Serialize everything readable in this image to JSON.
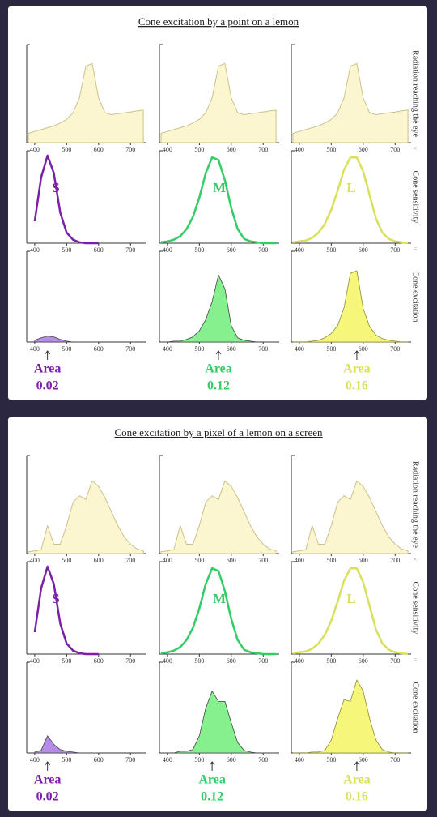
{
  "chart_data": [
    {
      "type": "area",
      "title": "Cone excitation by a point on a lemon",
      "row_labels": [
        "Radiation reaching the eye",
        "Cone sensitivity",
        "Cone excitation"
      ],
      "operators": [
        "×",
        "="
      ],
      "x": [
        380,
        400,
        420,
        440,
        460,
        480,
        500,
        520,
        540,
        560,
        580,
        600,
        620,
        640,
        660,
        680,
        700,
        720,
        740
      ],
      "xlim": [
        375,
        750
      ],
      "ylim": [
        0,
        1
      ],
      "xticks": [
        400,
        500,
        600,
        700
      ],
      "radiation": {
        "color": "#c9c28a",
        "fill": "#fbf6cf",
        "values": [
          0.1,
          0.12,
          0.14,
          0.16,
          0.18,
          0.21,
          0.25,
          0.32,
          0.48,
          0.82,
          0.85,
          0.48,
          0.32,
          0.3,
          0.31,
          0.32,
          0.33,
          0.34,
          0.35
        ]
      },
      "cones": [
        {
          "name": "S",
          "color": "#7b1fa8",
          "fill": "#b78be8",
          "area_label": "Area",
          "area": 0.02,
          "sensitivity": [
            null,
            0.25,
            0.75,
            1.0,
            0.8,
            0.35,
            0.12,
            0.04,
            0.01,
            0,
            0,
            0,
            null,
            null,
            null,
            null,
            null,
            null,
            null
          ],
          "excitation": [
            null,
            0.02,
            0.05,
            0.07,
            0.06,
            0.03,
            0.01,
            0,
            0,
            0,
            0,
            0,
            null,
            null,
            null,
            null,
            null,
            null,
            null
          ]
        },
        {
          "name": "M",
          "color": "#33cc66",
          "fill": "#86f08f",
          "area_label": "Area",
          "area": 0.12,
          "sensitivity": [
            0.01,
            0.02,
            0.04,
            0.08,
            0.16,
            0.3,
            0.52,
            0.8,
            0.98,
            0.95,
            0.72,
            0.4,
            0.16,
            0.05,
            0.02,
            0.01,
            0,
            0,
            0
          ],
          "excitation": [
            0,
            0,
            0.01,
            0.01,
            0.03,
            0.06,
            0.13,
            0.26,
            0.47,
            0.78,
            0.62,
            0.19,
            0.05,
            0.02,
            0.01,
            0,
            0,
            0,
            0
          ]
        },
        {
          "name": "L",
          "color": "#d9e05a",
          "fill": "#f6f77a",
          "area_label": "Area",
          "area": 0.16,
          "sensitivity": [
            0.01,
            0.02,
            0.03,
            0.06,
            0.12,
            0.22,
            0.38,
            0.6,
            0.84,
            0.98,
            0.98,
            0.82,
            0.55,
            0.28,
            0.12,
            0.05,
            0.02,
            0.01,
            0
          ],
          "excitation": [
            0,
            0,
            0,
            0.01,
            0.02,
            0.05,
            0.1,
            0.19,
            0.4,
            0.8,
            0.83,
            0.39,
            0.18,
            0.08,
            0.04,
            0.02,
            0.01,
            0,
            0
          ]
        }
      ]
    },
    {
      "type": "area",
      "title": "Cone excitation by a pixel of a lemon on a screen",
      "row_labels": [
        "Radiation reaching the eye",
        "Cone sensitivity",
        "Cone excitation"
      ],
      "operators": [
        "×",
        "="
      ],
      "x": [
        380,
        400,
        420,
        440,
        460,
        480,
        500,
        520,
        540,
        560,
        580,
        600,
        620,
        640,
        660,
        680,
        700,
        720,
        740
      ],
      "xlim": [
        375,
        750
      ],
      "ylim": [
        0,
        1
      ],
      "xticks": [
        400,
        500,
        600,
        700
      ],
      "radiation": {
        "color": "#c9c28a",
        "fill": "#fbf6cf",
        "values": [
          0.02,
          0.03,
          0.04,
          0.3,
          0.1,
          0.1,
          0.3,
          0.55,
          0.62,
          0.58,
          0.78,
          0.72,
          0.6,
          0.45,
          0.3,
          0.18,
          0.1,
          0.05,
          0.03
        ]
      },
      "cones": [
        {
          "name": "S",
          "color": "#7b1fa8",
          "fill": "#b78be8",
          "area_label": "Area",
          "area": 0.02,
          "sensitivity": [
            null,
            0.25,
            0.75,
            1.0,
            0.8,
            0.35,
            0.12,
            0.04,
            0.01,
            0,
            0,
            0,
            null,
            null,
            null,
            null,
            null,
            null,
            null
          ],
          "excitation": [
            null,
            0.01,
            0.03,
            0.2,
            0.1,
            0.04,
            0.02,
            0.01,
            0,
            0,
            0,
            0,
            null,
            null,
            null,
            null,
            null,
            null,
            null
          ]
        },
        {
          "name": "M",
          "color": "#33cc66",
          "fill": "#86f08f",
          "area_label": "Area",
          "area": 0.12,
          "sensitivity": [
            0.01,
            0.02,
            0.04,
            0.08,
            0.16,
            0.3,
            0.52,
            0.8,
            0.98,
            0.95,
            0.72,
            0.4,
            0.16,
            0.05,
            0.02,
            0.01,
            0,
            0,
            0
          ],
          "excitation": [
            0,
            0,
            0,
            0.02,
            0.02,
            0.04,
            0.2,
            0.52,
            0.72,
            0.6,
            0.6,
            0.35,
            0.12,
            0.03,
            0.01,
            0,
            0,
            0,
            0
          ]
        },
        {
          "name": "L",
          "color": "#d9e05a",
          "fill": "#f6f77a",
          "area_label": "Area",
          "area": 0.16,
          "sensitivity": [
            0.01,
            0.02,
            0.03,
            0.06,
            0.12,
            0.22,
            0.38,
            0.6,
            0.84,
            0.98,
            0.98,
            0.82,
            0.55,
            0.28,
            0.12,
            0.05,
            0.02,
            0.01,
            0
          ],
          "excitation": [
            0,
            0,
            0,
            0.01,
            0.01,
            0.03,
            0.15,
            0.4,
            0.62,
            0.6,
            0.85,
            0.72,
            0.4,
            0.15,
            0.04,
            0.01,
            0,
            0,
            0
          ]
        }
      ]
    }
  ]
}
